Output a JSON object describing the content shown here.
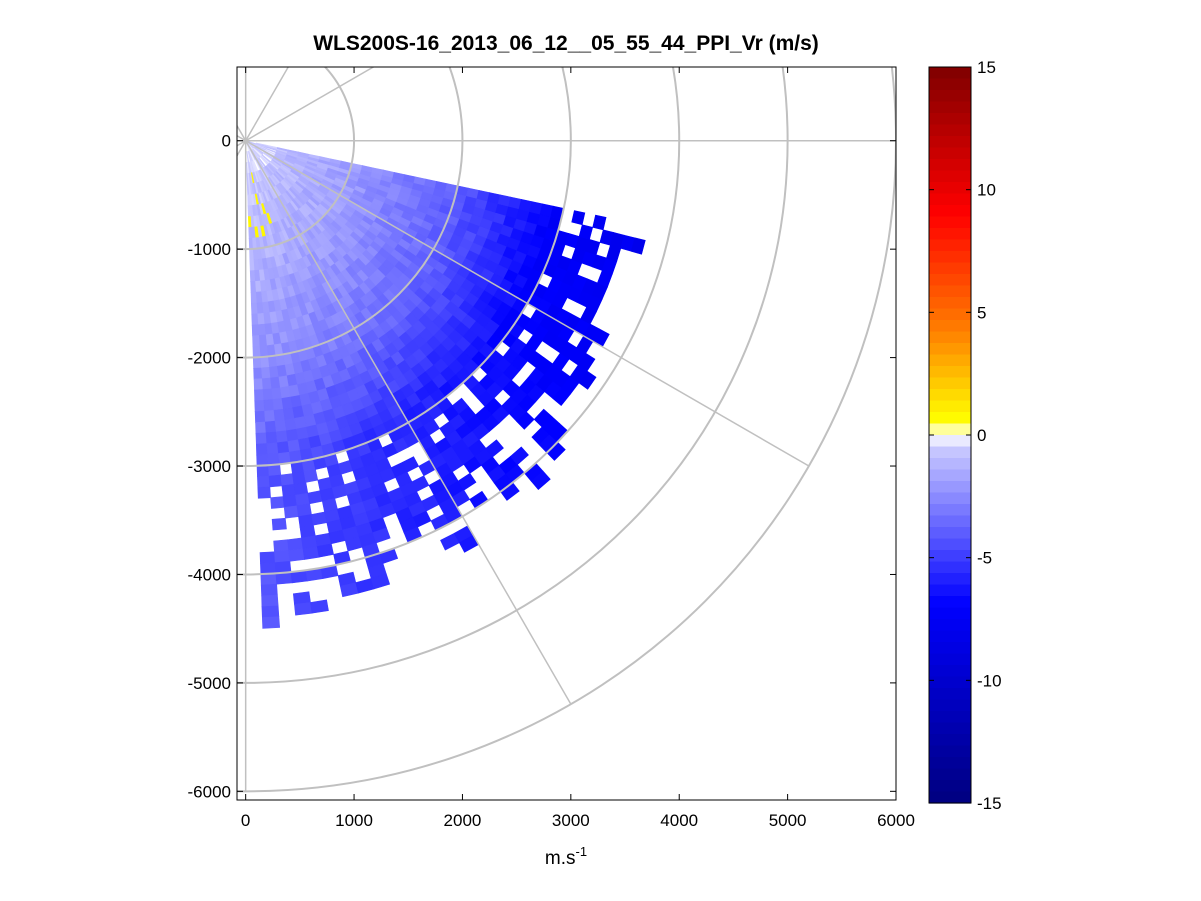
{
  "chart_data": {
    "type": "heatmap",
    "subtype": "polar-ppi-sector",
    "title": "WLS200S-16_2013_06_12__05_55_44_PPI_Vr (m/s)",
    "xlabel": {
      "base": "m.s",
      "sup": "-1"
    },
    "ylabel": "",
    "xlim": [
      -80,
      6000
    ],
    "ylim": [
      -6080,
      680
    ],
    "x_ticks": [
      0,
      1000,
      2000,
      3000,
      4000,
      5000,
      6000
    ],
    "x_tick_labels": [
      "0",
      "1000",
      "2000",
      "3000",
      "4000",
      "5000",
      "6000"
    ],
    "y_ticks": [
      0,
      -1000,
      -2000,
      -3000,
      -4000,
      -5000,
      -6000
    ],
    "y_tick_labels": [
      "0",
      "-1000",
      "-2000",
      "-3000",
      "-4000",
      "-5000",
      "-6000"
    ],
    "grid": true,
    "polar_grid": {
      "ring_radii": [
        1000,
        2000,
        3000,
        4000,
        5000,
        6000
      ],
      "spoke_angles_deg": [
        0,
        30,
        60,
        90,
        120,
        150,
        180,
        210,
        240,
        270,
        300,
        330
      ]
    },
    "colorbar": {
      "location": "right",
      "range": [
        -15,
        15
      ],
      "ticks": [
        15,
        10,
        5,
        0,
        -5,
        -10,
        -15
      ],
      "tick_labels": [
        "15",
        "10",
        "5",
        "0",
        "-5",
        "-10",
        "-15"
      ],
      "colors_top_to_bottom": [
        "#7f0000",
        "#ff0000",
        "#ff8000",
        "#ffff00",
        "#ffffff",
        "#c8c8ff",
        "#0000ff",
        "#00007f"
      ]
    },
    "scan": {
      "azimuth_range_deg": [
        -88,
        -13
      ],
      "range_m": [
        0,
        4700
      ],
      "gate_m": 100,
      "beam_width_deg": 2
    },
    "velocity_field": {
      "description_units": "m/s",
      "range_ring_velocity": [
        {
          "range_m": 0,
          "vr": -0.5
        },
        {
          "range_m": 1000,
          "vr": -2.0
        },
        {
          "range_m": 2000,
          "vr": -4.0
        },
        {
          "range_m": 3000,
          "vr": -7.5
        },
        {
          "range_m": 3800,
          "vr": -8.0
        }
      ],
      "southern_edge_vr": -2.5
    }
  }
}
